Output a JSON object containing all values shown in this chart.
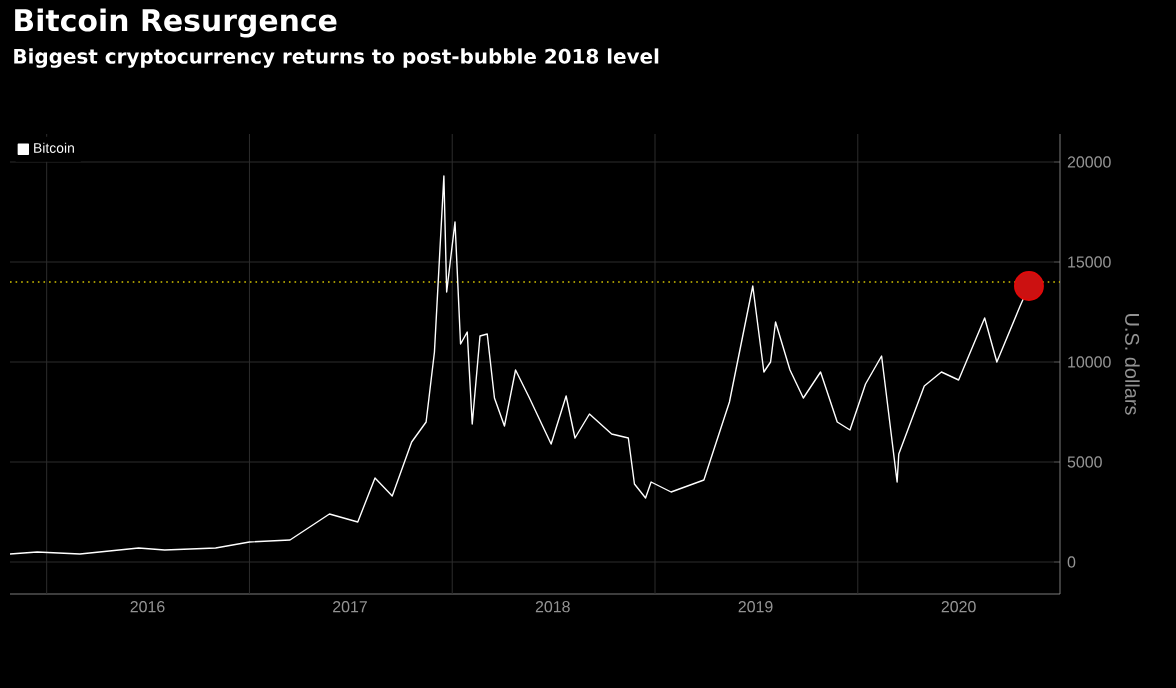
{
  "chart_data": {
    "type": "line",
    "title": "Bitcoin Resurgence",
    "subtitle": "Biggest cryptocurrency returns to post-bubble 2018 level",
    "ylabel": "U.S. dollars",
    "xlim": [
      "2015-10-27",
      "2020-12-31"
    ],
    "ylim": [
      -1600,
      21400
    ],
    "xticks": [
      {
        "value": "2016-01-01",
        "label": null
      },
      {
        "value": "2016-07-01",
        "label": "2016"
      },
      {
        "value": "2017-01-01",
        "label": null
      },
      {
        "value": "2017-07-01",
        "label": "2017"
      },
      {
        "value": "2018-01-01",
        "label": null
      },
      {
        "value": "2018-07-01",
        "label": "2018"
      },
      {
        "value": "2019-01-01",
        "label": null
      },
      {
        "value": "2019-07-01",
        "label": "2019"
      },
      {
        "value": "2020-01-01",
        "label": null
      },
      {
        "value": "2020-07-01",
        "label": "2020"
      }
    ],
    "yticks": [
      0,
      5000,
      10000,
      15000,
      20000
    ],
    "grid": true,
    "legend": "top left",
    "line_style": "solid",
    "ref_lines": [
      {
        "axis": "y",
        "value": 14000,
        "color": "#d4c400",
        "line_style": "dotted"
      }
    ],
    "series": [
      {
        "name": "Bitcoin",
        "color": "#ffffff",
        "marker": "none",
        "x": [
          "2015-10-27",
          "2015-12-15",
          "2016-03-01",
          "2016-06-15",
          "2016-08-01",
          "2016-11-01",
          "2017-01-01",
          "2017-03-15",
          "2017-05-25",
          "2017-07-15",
          "2017-08-15",
          "2017-09-15",
          "2017-10-20",
          "2017-11-15",
          "2017-11-30",
          "2017-12-17",
          "2017-12-22",
          "2018-01-06",
          "2018-01-16",
          "2018-01-28",
          "2018-02-06",
          "2018-02-20",
          "2018-03-05",
          "2018-03-18",
          "2018-04-05",
          "2018-04-25",
          "2018-05-20",
          "2018-06-28",
          "2018-07-25",
          "2018-08-10",
          "2018-09-05",
          "2018-10-15",
          "2018-11-14",
          "2018-11-25",
          "2018-12-15",
          "2018-12-25",
          "2019-01-30",
          "2019-03-30",
          "2019-05-15",
          "2019-06-26",
          "2019-07-16",
          "2019-07-28",
          "2019-08-06",
          "2019-09-01",
          "2019-09-25",
          "2019-10-26",
          "2019-11-25",
          "2019-12-18",
          "2020-01-15",
          "2020-02-13",
          "2020-03-12",
          "2020-03-15",
          "2020-04-30",
          "2020-05-31",
          "2020-07-01",
          "2020-08-17",
          "2020-09-08",
          "2020-10-20",
          "2020-11-05"
        ],
        "values": [
          400,
          500,
          400,
          700,
          600,
          700,
          1000,
          1100,
          2400,
          2000,
          4200,
          3300,
          6000,
          7000,
          10500,
          19300,
          13500,
          17000,
          10900,
          11500,
          6900,
          11300,
          11400,
          8200,
          6800,
          9600,
          8200,
          5900,
          8300,
          6200,
          7400,
          6400,
          6200,
          3900,
          3200,
          4000,
          3500,
          4100,
          8000,
          13800,
          9500,
          10000,
          12000,
          9600,
          8200,
          9500,
          7000,
          6600,
          8900,
          10300,
          4000,
          5400,
          8800,
          9500,
          9100,
          12200,
          10000,
          12800,
          13800
        ]
      },
      {
        "type": "scatter",
        "color": "#cc1111",
        "marker": "circle",
        "x": [
          "2020-11-05"
        ],
        "values": [
          13800
        ]
      }
    ]
  }
}
